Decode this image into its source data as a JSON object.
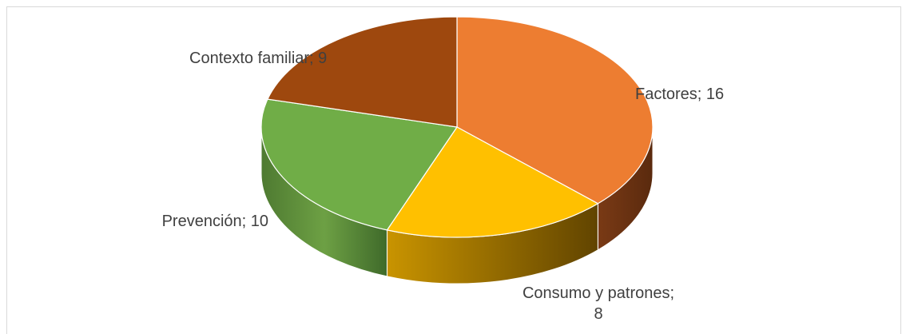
{
  "chart_data": {
    "type": "pie",
    "style": "3d",
    "series": [
      {
        "values": [
          16,
          8,
          10,
          9
        ],
        "categories": [
          "Factores",
          "Consumo y patrones",
          "Prevención",
          "Contexto familiar"
        ]
      }
    ],
    "labels": [
      [
        "Factores; 16"
      ],
      [
        "Consumo y patrones;",
        "8"
      ],
      [
        "Prevención; 10"
      ],
      [
        "Contexto familiar; 9"
      ]
    ],
    "colors": [
      "#ED7D31",
      "#FFC000",
      "#70AD47",
      "#9E480E"
    ],
    "legend": "none"
  }
}
